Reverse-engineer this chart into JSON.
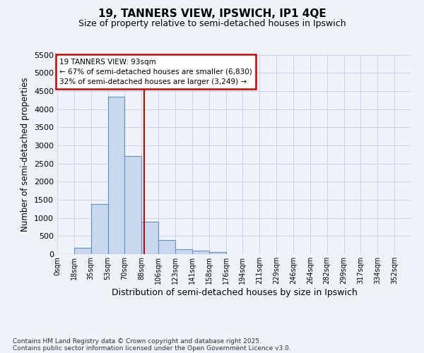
{
  "title": "19, TANNERS VIEW, IPSWICH, IP1 4QE",
  "subtitle": "Size of property relative to semi-detached houses in Ipswich",
  "xlabel": "Distribution of semi-detached houses by size in Ipswich",
  "ylabel": "Number of semi-detached properties",
  "property_label": "19 TANNERS VIEW: 93sqm",
  "pct_smaller": 67,
  "count_smaller": 6830,
  "pct_larger": 32,
  "count_larger": 3249,
  "bin_width": 17,
  "bins": [
    0,
    17,
    34,
    51,
    68,
    85,
    102,
    119,
    136,
    153,
    170,
    187,
    204,
    221,
    238,
    255,
    272,
    289,
    306,
    323,
    340,
    357
  ],
  "bar_values": [
    5,
    170,
    1380,
    4350,
    2700,
    900,
    390,
    140,
    90,
    60,
    0,
    0,
    0,
    0,
    0,
    0,
    0,
    0,
    0,
    0,
    0
  ],
  "bar_color": "#c8d9ee",
  "bar_edge_color": "#6090c8",
  "vline_color": "#cc0000",
  "vline_x": 88,
  "annotation_box_color": "#cc0000",
  "ylim": [
    0,
    5500
  ],
  "yticks": [
    0,
    500,
    1000,
    1500,
    2000,
    2500,
    3000,
    3500,
    4000,
    4500,
    5000,
    5500
  ],
  "tick_labels": [
    "0sqm",
    "18sqm",
    "35sqm",
    "53sqm",
    "70sqm",
    "88sqm",
    "106sqm",
    "123sqm",
    "141sqm",
    "158sqm",
    "176sqm",
    "194sqm",
    "211sqm",
    "229sqm",
    "246sqm",
    "264sqm",
    "282sqm",
    "299sqm",
    "317sqm",
    "334sqm",
    "352sqm"
  ],
  "footer_line1": "Contains HM Land Registry data © Crown copyright and database right 2025.",
  "footer_line2": "Contains public sector information licensed under the Open Government Licence v3.0.",
  "bg_color": "#f0f4fa",
  "plot_bg_color": "#f0f4fa",
  "grid_color": "#c8d4e8"
}
